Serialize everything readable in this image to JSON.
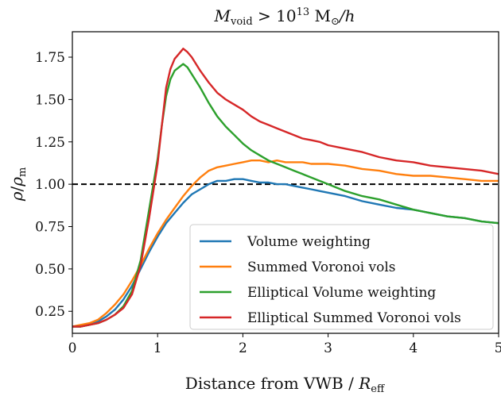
{
  "chart_data": {
    "type": "line",
    "title_parts": {
      "sym": "M",
      "sub": "void",
      "rel": " > 10",
      "exp": "13",
      "unit": " M",
      "sun": "⊙",
      "tail": "/h"
    },
    "xlabel_parts": {
      "text": "Distance from VWB / ",
      "sym": "R",
      "sub": "eff"
    },
    "ylabel_parts": {
      "a": "ρ",
      "slash": "/",
      "b": "ρ",
      "sub": "m"
    },
    "xlim": [
      0,
      5
    ],
    "ylim": [
      0.12,
      1.9
    ],
    "xticks": [
      0,
      1,
      2,
      3,
      4,
      5
    ],
    "xtick_labels": [
      "0",
      "1",
      "2",
      "3",
      "4",
      "5"
    ],
    "yticks": [
      0.25,
      0.5,
      0.75,
      1.0,
      1.25,
      1.5,
      1.75
    ],
    "ytick_labels": [
      "0.25",
      "0.50",
      "0.75",
      "1.00",
      "1.25",
      "1.50",
      "1.75"
    ],
    "reference_line": {
      "y": 1.0,
      "style": "dashed",
      "color": "#000000"
    },
    "legend_position": "lower-right",
    "series": [
      {
        "name": "Volume weighting",
        "color": "#1f77b4",
        "x": [
          0,
          0.1,
          0.2,
          0.3,
          0.4,
          0.5,
          0.6,
          0.7,
          0.8,
          0.9,
          1.0,
          1.1,
          1.2,
          1.3,
          1.4,
          1.5,
          1.6,
          1.7,
          1.8,
          1.9,
          2.0,
          2.1,
          2.2,
          2.3,
          2.4,
          2.5,
          2.6,
          2.7,
          2.8,
          2.9,
          3.0,
          3.2,
          3.4,
          3.6,
          3.8,
          4.0,
          4.2,
          4.4,
          4.6,
          4.8,
          5.0
        ],
        "y": [
          0.16,
          0.16,
          0.17,
          0.19,
          0.22,
          0.26,
          0.32,
          0.4,
          0.5,
          0.6,
          0.69,
          0.77,
          0.83,
          0.89,
          0.94,
          0.97,
          1.0,
          1.02,
          1.02,
          1.03,
          1.03,
          1.02,
          1.01,
          1.01,
          1.0,
          1.0,
          0.99,
          0.98,
          0.97,
          0.96,
          0.95,
          0.93,
          0.9,
          0.88,
          0.86,
          0.85,
          0.83,
          0.81,
          0.8,
          0.78,
          0.77
        ]
      },
      {
        "name": "Summed Voronoi vols",
        "color": "#ff7f0e",
        "x": [
          0,
          0.1,
          0.2,
          0.3,
          0.4,
          0.5,
          0.6,
          0.7,
          0.8,
          0.9,
          1.0,
          1.1,
          1.2,
          1.3,
          1.4,
          1.5,
          1.6,
          1.7,
          1.8,
          1.9,
          2.0,
          2.1,
          2.2,
          2.3,
          2.4,
          2.5,
          2.6,
          2.7,
          2.8,
          2.9,
          3.0,
          3.2,
          3.4,
          3.6,
          3.8,
          4.0,
          4.2,
          4.4,
          4.6,
          4.8,
          5.0
        ],
        "y": [
          0.16,
          0.17,
          0.18,
          0.2,
          0.24,
          0.29,
          0.35,
          0.43,
          0.52,
          0.62,
          0.71,
          0.79,
          0.86,
          0.93,
          0.99,
          1.04,
          1.08,
          1.1,
          1.11,
          1.12,
          1.13,
          1.14,
          1.14,
          1.13,
          1.14,
          1.13,
          1.13,
          1.13,
          1.12,
          1.12,
          1.12,
          1.11,
          1.09,
          1.08,
          1.06,
          1.05,
          1.05,
          1.04,
          1.03,
          1.02,
          1.02
        ]
      },
      {
        "name": "Elliptical Volume weighting",
        "color": "#2ca02c",
        "x": [
          0,
          0.1,
          0.2,
          0.3,
          0.4,
          0.5,
          0.6,
          0.7,
          0.8,
          0.9,
          1.0,
          1.05,
          1.1,
          1.15,
          1.2,
          1.25,
          1.3,
          1.35,
          1.4,
          1.5,
          1.6,
          1.7,
          1.8,
          1.9,
          2.0,
          2.1,
          2.2,
          2.3,
          2.4,
          2.5,
          2.6,
          2.7,
          2.8,
          2.9,
          3.0,
          3.2,
          3.4,
          3.6,
          3.8,
          4.0,
          4.2,
          4.4,
          4.6,
          4.8,
          5.0
        ],
        "y": [
          0.16,
          0.16,
          0.17,
          0.18,
          0.2,
          0.23,
          0.28,
          0.37,
          0.55,
          0.85,
          1.15,
          1.35,
          1.52,
          1.62,
          1.67,
          1.69,
          1.71,
          1.69,
          1.65,
          1.57,
          1.48,
          1.4,
          1.34,
          1.29,
          1.24,
          1.2,
          1.17,
          1.14,
          1.12,
          1.1,
          1.08,
          1.06,
          1.04,
          1.02,
          1.0,
          0.96,
          0.93,
          0.91,
          0.88,
          0.85,
          0.83,
          0.81,
          0.8,
          0.78,
          0.77
        ]
      },
      {
        "name": "Elliptical Summed Voronoi vols",
        "color": "#d62728",
        "x": [
          0,
          0.1,
          0.2,
          0.3,
          0.4,
          0.5,
          0.6,
          0.7,
          0.8,
          0.9,
          1.0,
          1.05,
          1.1,
          1.15,
          1.2,
          1.25,
          1.3,
          1.35,
          1.4,
          1.5,
          1.6,
          1.7,
          1.8,
          1.9,
          2.0,
          2.1,
          2.2,
          2.3,
          2.4,
          2.5,
          2.6,
          2.7,
          2.8,
          2.9,
          3.0,
          3.2,
          3.4,
          3.6,
          3.8,
          4.0,
          4.2,
          4.4,
          4.6,
          4.8,
          5.0
        ],
        "y": [
          0.16,
          0.16,
          0.17,
          0.18,
          0.2,
          0.23,
          0.27,
          0.35,
          0.52,
          0.8,
          1.12,
          1.35,
          1.57,
          1.68,
          1.74,
          1.77,
          1.8,
          1.78,
          1.75,
          1.67,
          1.6,
          1.54,
          1.5,
          1.47,
          1.44,
          1.4,
          1.37,
          1.35,
          1.33,
          1.31,
          1.29,
          1.27,
          1.26,
          1.25,
          1.23,
          1.21,
          1.19,
          1.16,
          1.14,
          1.13,
          1.11,
          1.1,
          1.09,
          1.08,
          1.06
        ]
      }
    ]
  }
}
